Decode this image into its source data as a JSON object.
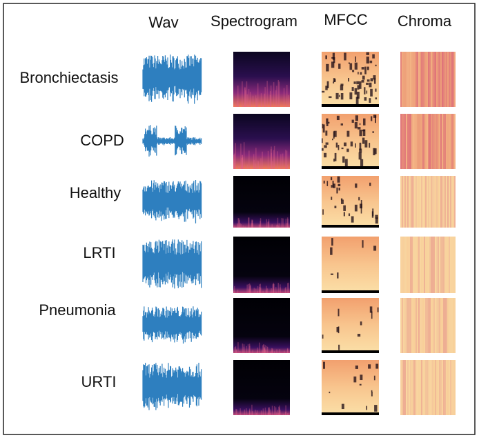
{
  "headers": [
    "Wav",
    "Spectrogram",
    "MFCC",
    "Chroma"
  ],
  "rows": [
    "Bronchiectasis",
    "COPD",
    "Healthy",
    "LRTI",
    "Pneumonia",
    "URTI"
  ]
}
